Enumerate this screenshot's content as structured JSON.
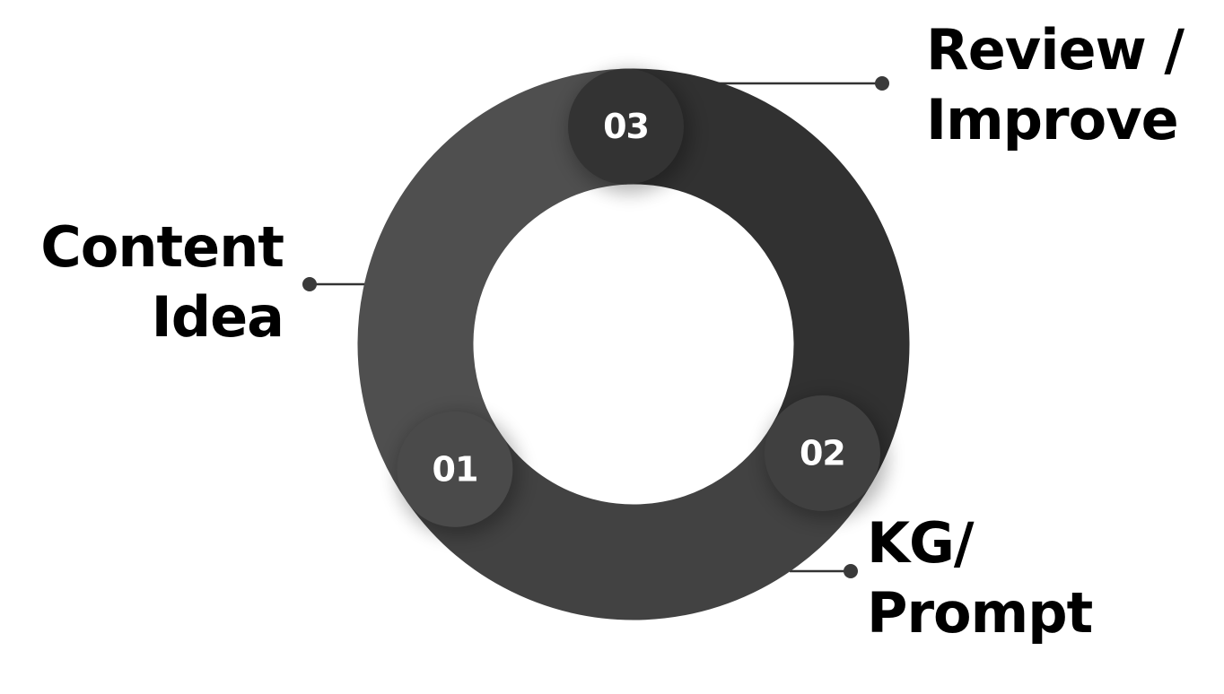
{
  "diagram": {
    "type": "cycle",
    "steps": [
      {
        "number": "01",
        "label_lines": [
          "Content",
          "Idea"
        ],
        "color": "#4a4a4a"
      },
      {
        "number": "02",
        "label_lines": [
          "KG/",
          "Prompt"
        ],
        "color": "#404040"
      },
      {
        "number": "03",
        "label_lines": [
          "Review /",
          "Improve"
        ],
        "color": "#333333"
      }
    ],
    "colors": {
      "ring_light": "#4f4f4f",
      "ring_mid": "#424242",
      "ring_dark": "#313131",
      "connector": "#333333",
      "label_text": "#000000",
      "number_text": "#ffffff"
    }
  }
}
